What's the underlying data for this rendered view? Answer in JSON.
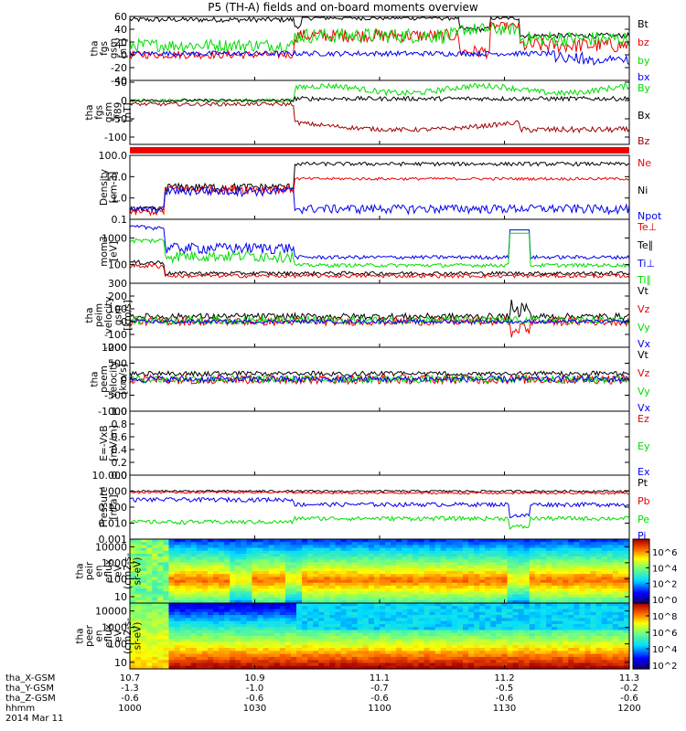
{
  "title": "P5 (TH-A) fields and on-board moments overview",
  "colors": {
    "black": "#000000",
    "red": "#ee0000",
    "green": "#00dd00",
    "blue": "#0000ee",
    "darkred": "#a00000",
    "frame": "#000000"
  },
  "chart_data": [
    {
      "type": "line",
      "id": "fgs_gsm",
      "ylabel": [
        "tha",
        "fgs",
        "gsm",
        "[nT]"
      ],
      "yticks": [
        "60",
        "40",
        "20",
        "0",
        "-20",
        "-40"
      ],
      "ylim": [
        -40,
        60
      ],
      "legend": [
        {
          "label": "Bt",
          "color": "#000000"
        },
        {
          "label": "bz",
          "color": "#ee0000"
        },
        {
          "label": "by",
          "color": "#00dd00"
        },
        {
          "label": "bx",
          "color": "#0000ee"
        }
      ]
    },
    {
      "type": "line",
      "id": "fgs_gsm_t89",
      "ylabel": [
        "tha",
        "fgs",
        "gsm",
        "-T89",
        "[nT]"
      ],
      "yticks": [
        "50",
        "0",
        "-50",
        "-100"
      ],
      "ylim": [
        -120,
        55
      ],
      "legend": [
        {
          "label": "By",
          "color": "#00dd00"
        },
        {
          "label": "Bx",
          "color": "#000000"
        },
        {
          "label": "Bz",
          "color": "#a00000"
        }
      ]
    },
    {
      "type": "line",
      "id": "density",
      "ylabel": [
        "Density",
        "[cm-3]"
      ],
      "yticks": [
        "100.0",
        "10.0",
        "1.0",
        "0.1"
      ],
      "yscale": "log",
      "ylim": [
        0.1,
        100
      ],
      "legend": [
        {
          "label": "Ne",
          "color": "#ee0000"
        },
        {
          "label": "Ni",
          "color": "#000000"
        },
        {
          "label": "Npot",
          "color": "#0000ee"
        }
      ]
    },
    {
      "type": "line",
      "id": "temperature",
      "ylabel": [
        "mom3",
        "[eV]"
      ],
      "yticks": [
        "1000",
        "100"
      ],
      "yscale": "log",
      "ylim": [
        20,
        5000
      ],
      "legend": [
        {
          "label": "Te⊥",
          "color": "#ee0000"
        },
        {
          "label": "Te∥",
          "color": "#000000"
        },
        {
          "label": "Ti⊥",
          "color": "#0000ee"
        },
        {
          "label": "Ti∥",
          "color": "#00dd00"
        }
      ]
    },
    {
      "type": "line",
      "id": "peim_velocity",
      "ylabel": [
        "tha",
        "peim",
        "velocity",
        "gsm",
        "[km/s]"
      ],
      "yticks": [
        "300",
        "200",
        "100",
        "0",
        "-100",
        "-200"
      ],
      "ylim": [
        -200,
        300
      ],
      "legend": [
        {
          "label": "Vt",
          "color": "#000000"
        },
        {
          "label": "Vz",
          "color": "#ee0000"
        },
        {
          "label": "Vy",
          "color": "#00dd00"
        },
        {
          "label": "Vx",
          "color": "#0000ee"
        }
      ]
    },
    {
      "type": "line",
      "id": "peem_velocity",
      "ylabel": [
        "tha",
        "peem",
        "velocity",
        "[km/s]"
      ],
      "yticks": [
        "1000",
        "500",
        "0",
        "-500",
        "-1000"
      ],
      "ylim": [
        -1000,
        1000
      ],
      "legend": [
        {
          "label": "Vt",
          "color": "#000000"
        },
        {
          "label": "Vz",
          "color": "#ee0000"
        },
        {
          "label": "Vy",
          "color": "#00dd00"
        },
        {
          "label": "Vx",
          "color": "#0000ee"
        }
      ]
    },
    {
      "type": "line",
      "id": "efield",
      "ylabel": [
        "E=-VxB",
        "[mV/m]"
      ],
      "yticks": [
        "1.0",
        "0.8",
        "0.6",
        "0.4",
        "0.2",
        "0.0"
      ],
      "ylim": [
        0,
        1
      ],
      "legend": [
        {
          "label": "Ez",
          "color": "#ee0000"
        },
        {
          "label": "Ey",
          "color": "#00dd00"
        },
        {
          "label": "Ex",
          "color": "#0000ee"
        }
      ]
    },
    {
      "type": "line",
      "id": "pressure",
      "ylabel": [
        "Pressure",
        "[nPa]"
      ],
      "yticks": [
        "10.000",
        "1.000",
        "0.100",
        "0.010",
        "0.001"
      ],
      "yscale": "log",
      "ylim": [
        0.001,
        10
      ],
      "legend": [
        {
          "label": "Pt",
          "color": "#000000"
        },
        {
          "label": "Pb",
          "color": "#ee0000"
        },
        {
          "label": "Pe",
          "color": "#00dd00"
        },
        {
          "label": "Pi",
          "color": "#0000ee"
        }
      ]
    },
    {
      "type": "heatmap",
      "id": "peir_spec",
      "ylabel": [
        "tha",
        "peir",
        "en",
        "eflux",
        "eV",
        "(cm2-s-",
        "sr-eV)"
      ],
      "yticks": [
        "10000",
        "1000",
        "100",
        "10"
      ],
      "yscale": "log",
      "colorbar_ticks": [
        "10^6",
        "10^4",
        "10^2",
        "10^0"
      ]
    },
    {
      "type": "heatmap",
      "id": "peer_spec",
      "ylabel": [
        "tha",
        "peer",
        "en",
        "eflux",
        "eV",
        "(cm2-s-",
        "sr-eV)"
      ],
      "yticks": [
        "10000",
        "1000",
        "100",
        "10"
      ],
      "yscale": "log",
      "colorbar_ticks": [
        "10^8",
        "10^6",
        "10^4",
        "10^2"
      ]
    }
  ],
  "xaxis": {
    "rows": [
      {
        "label": "tha_X-GSM",
        "values": [
          "10.7",
          "10.9",
          "11.1",
          "11.2",
          "11.3"
        ]
      },
      {
        "label": "tha_Y-GSM",
        "values": [
          "-1.3",
          "-1.0",
          "-0.7",
          "-0.5",
          "-0.2"
        ]
      },
      {
        "label": "tha_Z-GSM",
        "values": [
          "-0.6",
          "-0.6",
          "-0.6",
          "-0.6",
          "-0.6"
        ]
      },
      {
        "label": "hhmm",
        "values": [
          "1000",
          "1030",
          "1100",
          "1130",
          "1200"
        ]
      }
    ],
    "date": "2014 Mar 11"
  }
}
